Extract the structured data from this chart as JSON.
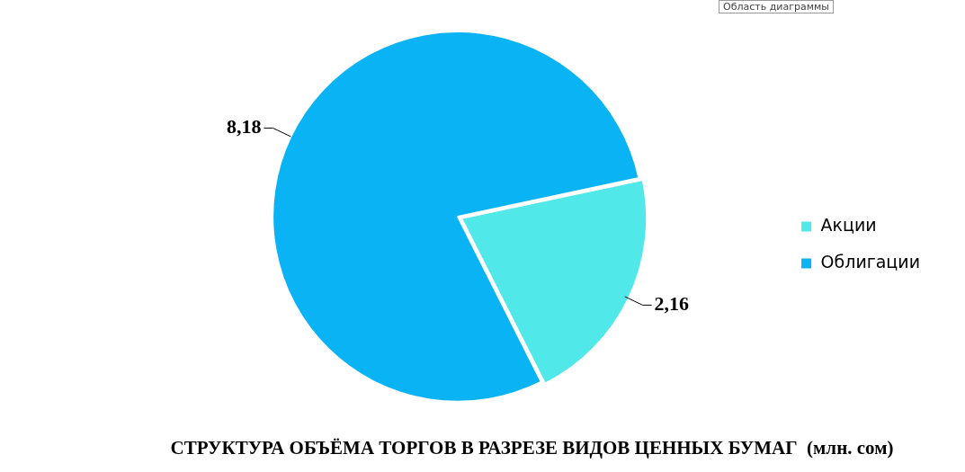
{
  "chart_data": {
    "type": "pie",
    "title": "СТРУКТУРА ОБЪЁМА ТОРГОВ В РАЗРЕЗЕ ВИДОВ ЦЕННЫХ БУМАГ  (млн. сом)",
    "categories": [
      "Акции",
      "Облигации"
    ],
    "values": [
      2.16,
      8.18
    ],
    "value_labels": [
      "2,16",
      "8,18"
    ],
    "colors": [
      "#50e8e8",
      "#0ab4f4"
    ],
    "legend": "right",
    "annotations": [
      "Область диаграммы"
    ]
  }
}
